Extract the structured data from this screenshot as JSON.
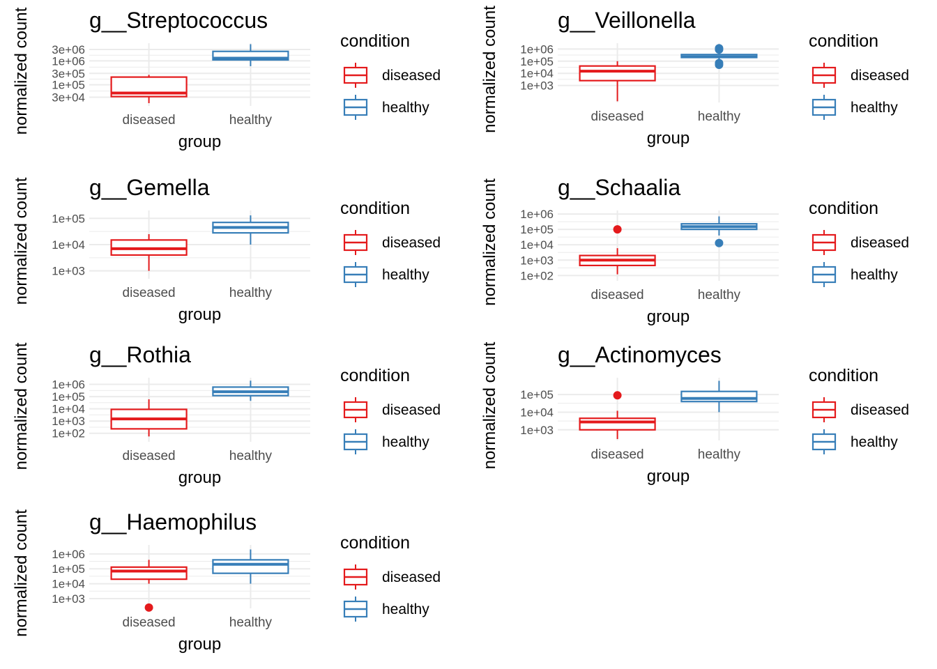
{
  "colors": {
    "diseased": "#E41A1C",
    "healthy": "#377EB8",
    "grid": "#EBEBEB",
    "axis_text": "#4D4D4D",
    "text": "#000000"
  },
  "chart_data": [
    {
      "type": "boxplot",
      "title": "g__Streptococcus",
      "xlabel": "group",
      "ylabel": "normalized count",
      "y_scale": "log10",
      "ylim": [
        13000,
        5500000
      ],
      "y_ticks": [
        30000,
        100000,
        300000,
        1000000,
        3000000
      ],
      "y_tick_labels": [
        "3e+04",
        "1e+05",
        "3e+05",
        "1e+06",
        "3e+06"
      ],
      "categories": [
        "diseased",
        "healthy"
      ],
      "legend": {
        "title": "condition",
        "entries": [
          "diseased",
          "healthy"
        ],
        "position": "right"
      },
      "series": [
        {
          "group": "diseased",
          "min": 17000,
          "q1": 32000,
          "median": 45000,
          "q3": 210000,
          "max": 260000,
          "outliers": []
        },
        {
          "group": "healthy",
          "min": 600000,
          "q1": 1100000,
          "median": 1300000,
          "q3": 2500000,
          "max": 5000000,
          "outliers": []
        }
      ]
    },
    {
      "type": "boxplot",
      "title": "g__Veillonella",
      "xlabel": "group",
      "ylabel": "normalized count",
      "y_scale": "log10",
      "ylim": [
        40,
        3000000
      ],
      "y_ticks": [
        1000,
        10000,
        100000,
        1000000
      ],
      "y_tick_labels": [
        "1e+03",
        "1e+04",
        "1e+05",
        "1e+06"
      ],
      "categories": [
        "diseased",
        "healthy"
      ],
      "legend": {
        "title": "condition",
        "entries": [
          "diseased",
          "healthy"
        ],
        "position": "right"
      },
      "series": [
        {
          "group": "diseased",
          "min": 50,
          "q1": 2500,
          "median": 15000,
          "q3": 40000,
          "max": 100000,
          "outliers": []
        },
        {
          "group": "healthy",
          "min": 75000,
          "q1": 200000,
          "median": 230000,
          "q3": 350000,
          "max": 1000000,
          "outliers": [
            1150000,
            900000,
            70000,
            50000
          ]
        }
      ]
    },
    {
      "type": "boxplot",
      "title": "g__Gemella",
      "xlabel": "group",
      "ylabel": "normalized count",
      "y_scale": "log10",
      "ylim": [
        500,
        200000
      ],
      "y_ticks": [
        1000,
        10000,
        100000
      ],
      "y_tick_labels": [
        "1e+03",
        "1e+04",
        "1e+05"
      ],
      "categories": [
        "diseased",
        "healthy"
      ],
      "legend": {
        "title": "condition",
        "entries": [
          "diseased",
          "healthy"
        ],
        "position": "right"
      },
      "series": [
        {
          "group": "diseased",
          "min": 1000,
          "q1": 4000,
          "median": 7000,
          "q3": 15000,
          "max": 25000,
          "outliers": []
        },
        {
          "group": "healthy",
          "min": 10000,
          "q1": 28000,
          "median": 45000,
          "q3": 70000,
          "max": 130000,
          "outliers": []
        }
      ]
    },
    {
      "type": "boxplot",
      "title": "g__Schaalia",
      "xlabel": "group",
      "ylabel": "normalized count",
      "y_scale": "log10",
      "ylim": [
        45,
        1700000
      ],
      "y_ticks": [
        100,
        1000,
        10000,
        100000,
        1000000
      ],
      "y_tick_labels": [
        "1e+02",
        "1e+03",
        "1e+04",
        "1e+05",
        "1e+06"
      ],
      "categories": [
        "diseased",
        "healthy"
      ],
      "legend": {
        "title": "condition",
        "entries": [
          "diseased",
          "healthy"
        ],
        "position": "right"
      },
      "series": [
        {
          "group": "diseased",
          "min": 120,
          "q1": 450,
          "median": 1000,
          "q3": 2000,
          "max": 6000,
          "outliers": [
            100000
          ]
        },
        {
          "group": "healthy",
          "min": 40000,
          "q1": 100000,
          "median": 150000,
          "q3": 230000,
          "max": 700000,
          "outliers": [
            13000
          ]
        }
      ]
    },
    {
      "type": "boxplot",
      "title": "g__Rothia",
      "xlabel": "group",
      "ylabel": "normalized count",
      "y_scale": "log10",
      "ylim": [
        20,
        3500000
      ],
      "y_ticks": [
        100,
        1000,
        10000,
        100000,
        1000000
      ],
      "y_tick_labels": [
        "1e+02",
        "1e+03",
        "1e+04",
        "1e+05",
        "1e+06"
      ],
      "categories": [
        "diseased",
        "healthy"
      ],
      "legend": {
        "title": "condition",
        "entries": [
          "diseased",
          "healthy"
        ],
        "position": "right"
      },
      "series": [
        {
          "group": "diseased",
          "min": 55,
          "q1": 230,
          "median": 1500,
          "q3": 9000,
          "max": 60000,
          "outliers": []
        },
        {
          "group": "healthy",
          "min": 45000,
          "q1": 120000,
          "median": 250000,
          "q3": 600000,
          "max": 2000000,
          "outliers": []
        }
      ]
    },
    {
      "type": "boxplot",
      "title": "g__Actinomyces",
      "xlabel": "group",
      "ylabel": "normalized count",
      "y_scale": "log10",
      "ylim": [
        250,
        900000
      ],
      "y_ticks": [
        1000,
        10000,
        100000
      ],
      "y_tick_labels": [
        "1e+03",
        "1e+04",
        "1e+05"
      ],
      "categories": [
        "diseased",
        "healthy"
      ],
      "legend": {
        "title": "condition",
        "entries": [
          "diseased",
          "healthy"
        ],
        "position": "right"
      },
      "series": [
        {
          "group": "diseased",
          "min": 300,
          "q1": 1000,
          "median": 2800,
          "q3": 4500,
          "max": 12000,
          "outliers": [
            90000
          ]
        },
        {
          "group": "healthy",
          "min": 10000,
          "q1": 40000,
          "median": 60000,
          "q3": 150000,
          "max": 600000,
          "outliers": []
        }
      ]
    },
    {
      "type": "boxplot",
      "title": "g__Haemophilus",
      "xlabel": "group",
      "ylabel": "normalized count",
      "y_scale": "log10",
      "ylim": [
        220,
        4000000
      ],
      "y_ticks": [
        1000,
        10000,
        100000,
        1000000
      ],
      "y_tick_labels": [
        "1e+03",
        "1e+04",
        "1e+05",
        "1e+06"
      ],
      "categories": [
        "diseased",
        "healthy"
      ],
      "legend": {
        "title": "condition",
        "entries": [
          "diseased",
          "healthy"
        ],
        "position": "right"
      },
      "series": [
        {
          "group": "diseased",
          "min": 10000,
          "q1": 20000,
          "median": 70000,
          "q3": 130000,
          "max": 400000,
          "outliers": [
            250
          ]
        },
        {
          "group": "healthy",
          "min": 10000,
          "q1": 50000,
          "median": 200000,
          "q3": 400000,
          "max": 2000000,
          "outliers": []
        }
      ]
    }
  ]
}
